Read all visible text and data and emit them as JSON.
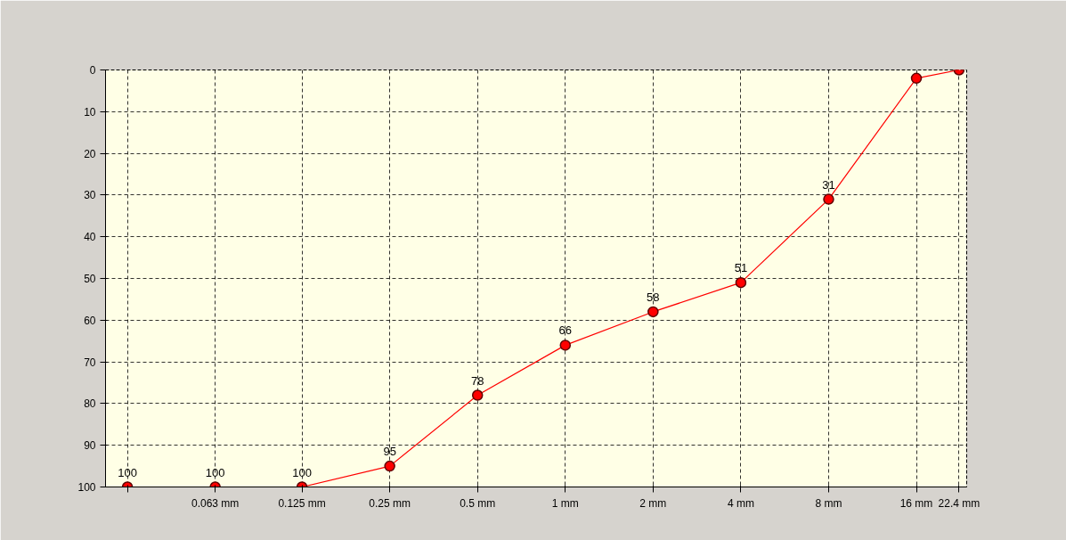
{
  "chart_data": {
    "type": "line",
    "x": [
      0.0315,
      0.063,
      0.125,
      0.25,
      0.5,
      1,
      2,
      4,
      8,
      16,
      22.4
    ],
    "values": [
      100,
      100,
      100,
      95,
      78,
      66,
      58,
      51,
      31,
      2,
      0
    ],
    "value_labels": [
      "100",
      "100",
      "100",
      "95",
      "78",
      "66",
      "58",
      "51",
      "31",
      null,
      null
    ],
    "color": "#ff0000",
    "marker": "circle",
    "line_style": "solid",
    "log": "x",
    "xlim": [
      0.0265,
      23.8
    ],
    "xticks": [
      {
        "value": 0.0315,
        "label": null
      },
      {
        "value": 0.063,
        "label": "0.063 mm"
      },
      {
        "value": 0.125,
        "label": "0.125 mm"
      },
      {
        "value": 0.25,
        "label": "0.25 mm"
      },
      {
        "value": 0.5,
        "label": "0.5 mm"
      },
      {
        "value": 1,
        "label": "1 mm"
      },
      {
        "value": 2,
        "label": "2 mm"
      },
      {
        "value": 4,
        "label": "4 mm"
      },
      {
        "value": 8,
        "label": "8 mm"
      },
      {
        "value": 16,
        "label": "16 mm"
      },
      {
        "value": 22.4,
        "label": "22.4 mm"
      }
    ],
    "ylim": [
      100,
      0
    ],
    "yticks": [
      0,
      10,
      20,
      30,
      40,
      50,
      60,
      70,
      80,
      90,
      100
    ],
    "grid": true
  }
}
